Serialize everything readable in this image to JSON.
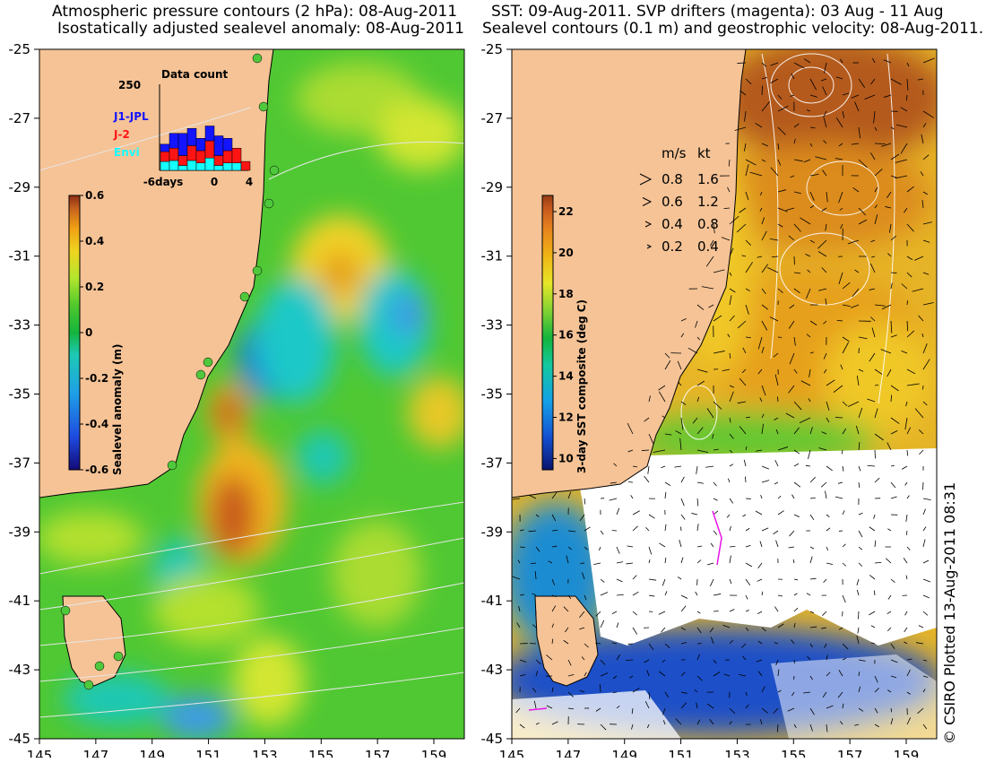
{
  "left_panel": {
    "title_line1": "Atmospheric pressure contours (2 hPa): 08-Aug-2011",
    "title_line2": "Isostatically adjusted sealevel anomaly: 08-Aug-2011",
    "y_ticks": [
      "-25",
      "-27",
      "-29",
      "-31",
      "-33",
      "-35",
      "-37",
      "-39",
      "-41",
      "-43",
      "-45"
    ],
    "x_ticks": [
      "145",
      "147",
      "149",
      "151",
      "153",
      "155",
      "157",
      "159"
    ],
    "colorbar": {
      "label": "Sealevel anomaly (m)",
      "ticks": [
        "0.6",
        "0.4",
        "0.2",
        "0",
        "-0.2",
        "-0.4",
        "-0.6"
      ],
      "range": [
        -0.6,
        0.6
      ],
      "colors": [
        "#140a78",
        "#1e4be0",
        "#1ea0e6",
        "#1ec8b4",
        "#14b43c",
        "#50c82d",
        "#b4e62d",
        "#f0d21e",
        "#f0a014",
        "#c8641e",
        "#8c2d14"
      ]
    },
    "inset": {
      "title": "Data count",
      "y_top": "250",
      "legend": [
        {
          "label": "J1-JPL",
          "color": "#1414ff"
        },
        {
          "label": "J-2",
          "color": "#ff1414"
        },
        {
          "label": "Envi",
          "color": "#14ffff"
        }
      ],
      "x_ticks": [
        "-6days",
        "0",
        "4"
      ]
    },
    "colors": {
      "land": "#f5c396",
      "coast": "#000000",
      "contour": "#e6e6e6",
      "marker": "#50c83c"
    }
  },
  "right_panel": {
    "title_line1": "SST: 09-Aug-2011. SVP drifters (magenta): 03 Aug - 11 Aug",
    "title_line2": "Sealevel contours (0.1 m) and geostrophic velocity: 08-Aug-2011.",
    "y_ticks": [
      "-25",
      "-27",
      "-29",
      "-31",
      "-33",
      "-35",
      "-37",
      "-39",
      "-41",
      "-43",
      "-45"
    ],
    "x_ticks": [
      "145",
      "147",
      "149",
      "151",
      "153",
      "155",
      "157",
      "159"
    ],
    "colorbar": {
      "label": "3-day SST composite (deg C)",
      "ticks": [
        "22",
        "20",
        "18",
        "16",
        "14",
        "12",
        "10"
      ],
      "range": [
        9,
        23
      ],
      "colors": [
        "#0a146e",
        "#1450d2",
        "#14a0e6",
        "#14c8a0",
        "#14b43c",
        "#82d232",
        "#e6e628",
        "#f0b414",
        "#e6821e",
        "#c85a1e",
        "#963c14"
      ]
    },
    "legend_header": [
      "m/s",
      "kt"
    ],
    "legend_rows": [
      {
        "ms": "0.8",
        "kt": "1.6"
      },
      {
        "ms": "0.6",
        "kt": "1.2"
      },
      {
        "ms": "0.4",
        "kt": "0.8"
      },
      {
        "ms": "0.2",
        "kt": "0.4"
      }
    ],
    "credit": "© CSIRO Plotted 13-Aug-2011 08:31",
    "colors": {
      "land": "#f5c396",
      "cloud": "#ffffff",
      "drifter": "#e614e6"
    }
  }
}
